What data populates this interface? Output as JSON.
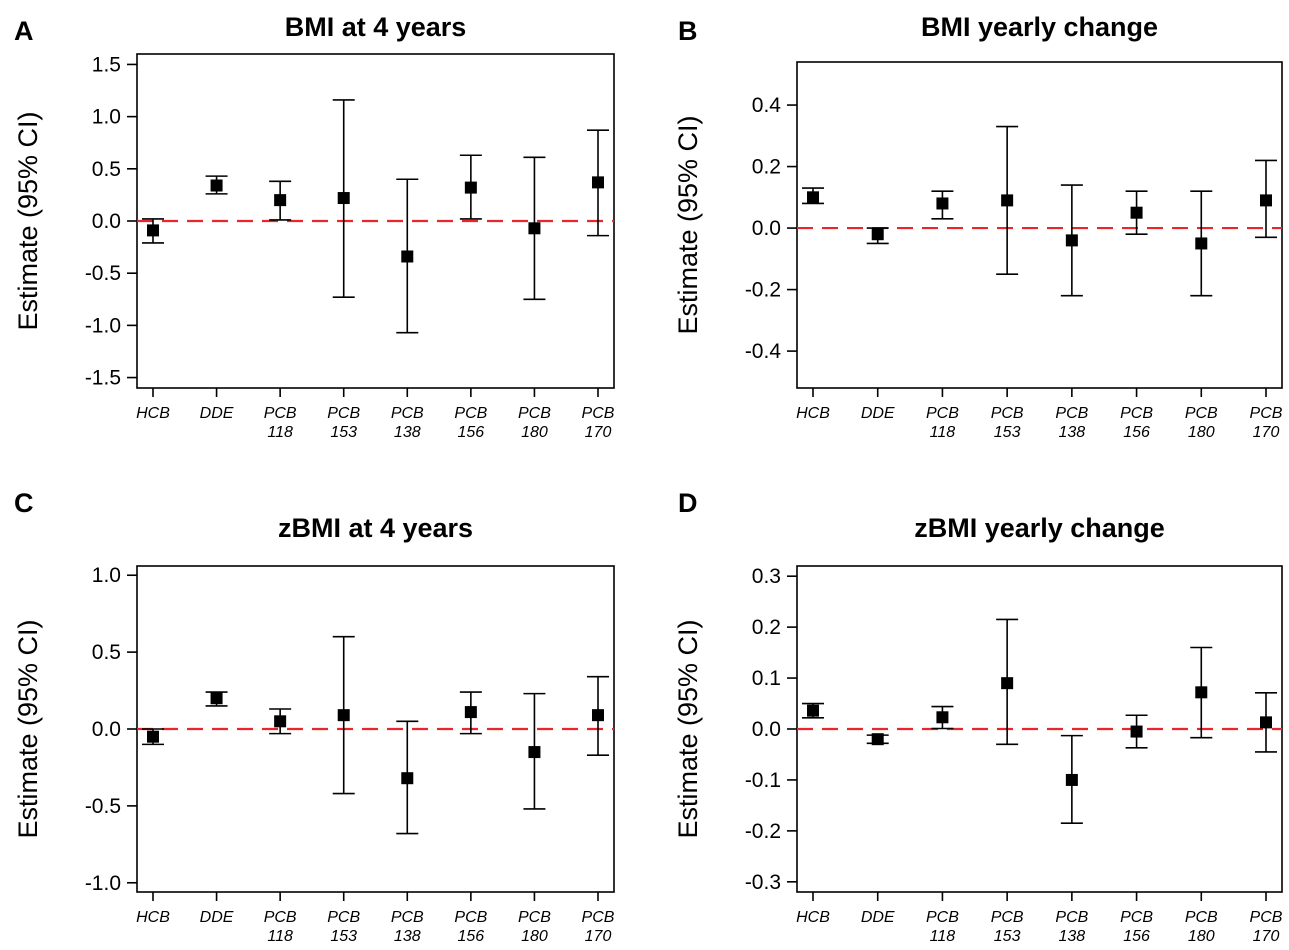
{
  "chart_data": [
    {
      "type": "scatter",
      "panel": "A",
      "title": "BMI at 4 years",
      "ylabel": "Estimate (95% CI)",
      "ylim": [
        -1.6,
        1.6
      ],
      "yticks": [
        "-1.5",
        "-1.0",
        "-0.5",
        "0.0",
        "0.5",
        "1.0",
        "1.5"
      ],
      "reference_line": 0,
      "categories": [
        [
          "HCB"
        ],
        [
          "DDE"
        ],
        [
          "PCB",
          "118"
        ],
        [
          "PCB",
          "153"
        ],
        [
          "PCB",
          "138"
        ],
        [
          "PCB",
          "156"
        ],
        [
          "PCB",
          "180"
        ],
        [
          "PCB",
          "170"
        ]
      ],
      "points": [
        {
          "estimate": -0.09,
          "lower": -0.21,
          "upper": 0.02
        },
        {
          "estimate": 0.34,
          "lower": 0.26,
          "upper": 0.43
        },
        {
          "estimate": 0.2,
          "lower": 0.01,
          "upper": 0.38
        },
        {
          "estimate": 0.22,
          "lower": -0.73,
          "upper": 1.16
        },
        {
          "estimate": -0.34,
          "lower": -1.07,
          "upper": 0.4
        },
        {
          "estimate": 0.32,
          "lower": 0.02,
          "upper": 0.63
        },
        {
          "estimate": -0.07,
          "lower": -0.75,
          "upper": 0.61
        },
        {
          "estimate": 0.37,
          "lower": -0.14,
          "upper": 0.87
        }
      ]
    },
    {
      "type": "scatter",
      "panel": "B",
      "title": "BMI yearly change",
      "ylabel": "Estimate (95% CI)",
      "ylim": [
        -0.52,
        0.54
      ],
      "yticks": [
        "-0.4",
        "-0.2",
        "0.0",
        "0.2",
        "0.4"
      ],
      "reference_line": 0,
      "categories": [
        [
          "HCB"
        ],
        [
          "DDE"
        ],
        [
          "PCB",
          "118"
        ],
        [
          "PCB",
          "153"
        ],
        [
          "PCB",
          "138"
        ],
        [
          "PCB",
          "156"
        ],
        [
          "PCB",
          "180"
        ],
        [
          "PCB",
          "170"
        ]
      ],
      "points": [
        {
          "estimate": 0.1,
          "lower": 0.08,
          "upper": 0.13
        },
        {
          "estimate": -0.02,
          "lower": -0.05,
          "upper": 0.0
        },
        {
          "estimate": 0.08,
          "lower": 0.03,
          "upper": 0.12
        },
        {
          "estimate": 0.09,
          "lower": -0.15,
          "upper": 0.33
        },
        {
          "estimate": -0.04,
          "lower": -0.22,
          "upper": 0.14
        },
        {
          "estimate": 0.05,
          "lower": -0.02,
          "upper": 0.12
        },
        {
          "estimate": -0.05,
          "lower": -0.22,
          "upper": 0.12
        },
        {
          "estimate": 0.09,
          "lower": -0.03,
          "upper": 0.22
        }
      ]
    },
    {
      "type": "scatter",
      "panel": "C",
      "title": "zBMI at 4 years",
      "ylabel": "Estimate (95% CI)",
      "ylim": [
        -1.06,
        1.06
      ],
      "yticks": [
        "-1.0",
        "-0.5",
        "0.0",
        "0.5",
        "1.0"
      ],
      "reference_line": 0,
      "categories": [
        [
          "HCB"
        ],
        [
          "DDE"
        ],
        [
          "PCB",
          "118"
        ],
        [
          "PCB",
          "153"
        ],
        [
          "PCB",
          "138"
        ],
        [
          "PCB",
          "156"
        ],
        [
          "PCB",
          "180"
        ],
        [
          "PCB",
          "170"
        ]
      ],
      "points": [
        {
          "estimate": -0.05,
          "lower": -0.1,
          "upper": 0.0
        },
        {
          "estimate": 0.2,
          "lower": 0.15,
          "upper": 0.24
        },
        {
          "estimate": 0.05,
          "lower": -0.03,
          "upper": 0.13
        },
        {
          "estimate": 0.09,
          "lower": -0.42,
          "upper": 0.6
        },
        {
          "estimate": -0.32,
          "lower": -0.68,
          "upper": 0.05
        },
        {
          "estimate": 0.11,
          "lower": -0.03,
          "upper": 0.24
        },
        {
          "estimate": -0.15,
          "lower": -0.52,
          "upper": 0.23
        },
        {
          "estimate": 0.09,
          "lower": -0.17,
          "upper": 0.34
        }
      ]
    },
    {
      "type": "scatter",
      "panel": "D",
      "title": "zBMI yearly change",
      "ylabel": "Estimate (95% CI)",
      "ylim": [
        -0.32,
        0.32
      ],
      "yticks": [
        "-0.3",
        "-0.2",
        "-0.1",
        "0.0",
        "0.1",
        "0.2",
        "0.3"
      ],
      "reference_line": 0,
      "categories": [
        [
          "HCB"
        ],
        [
          "DDE"
        ],
        [
          "PCB",
          "118"
        ],
        [
          "PCB",
          "153"
        ],
        [
          "PCB",
          "138"
        ],
        [
          "PCB",
          "156"
        ],
        [
          "PCB",
          "180"
        ],
        [
          "PCB",
          "170"
        ]
      ],
      "points": [
        {
          "estimate": 0.036,
          "lower": 0.022,
          "upper": 0.05
        },
        {
          "estimate": -0.02,
          "lower": -0.028,
          "upper": -0.012
        },
        {
          "estimate": 0.023,
          "lower": 0.001,
          "upper": 0.044
        },
        {
          "estimate": 0.09,
          "lower": -0.03,
          "upper": 0.215
        },
        {
          "estimate": -0.1,
          "lower": -0.185,
          "upper": -0.013
        },
        {
          "estimate": -0.005,
          "lower": -0.037,
          "upper": 0.027
        },
        {
          "estimate": 0.072,
          "lower": -0.017,
          "upper": 0.16
        },
        {
          "estimate": 0.013,
          "lower": -0.045,
          "upper": 0.071
        }
      ]
    }
  ],
  "colors": {
    "reference_line": "#e8262b",
    "points": "#000000",
    "axes": "#000000"
  }
}
